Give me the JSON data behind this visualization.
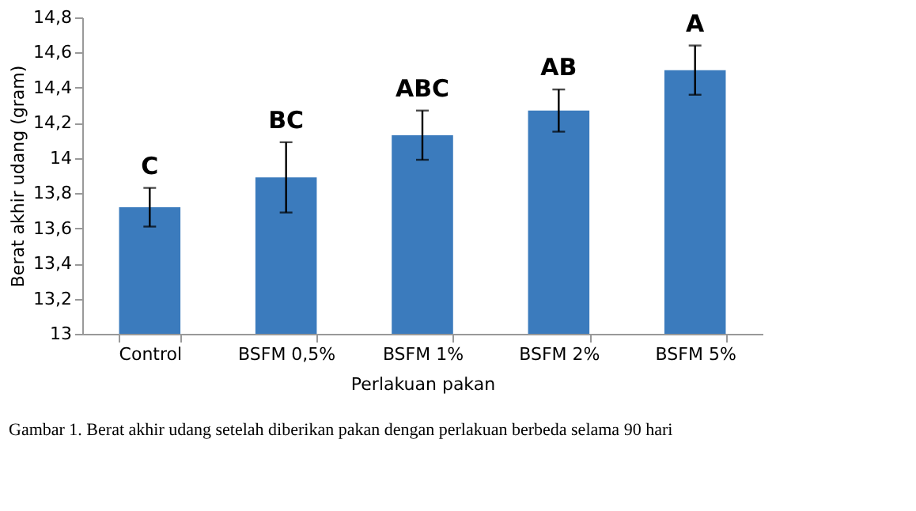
{
  "chart_data": {
    "type": "bar",
    "xlabel": "Perlakuan pakan",
    "ylabel": "Berat akhir udang (gram)",
    "categories": [
      "Control",
      "BSFM 0,5%",
      "BSFM 1%",
      "BSFM 2%",
      "BSFM 5%"
    ],
    "series": [
      {
        "color": "#3b7bbd",
        "values": [
          13.72,
          13.89,
          14.13,
          14.27,
          14.5
        ],
        "errors": [
          0.11,
          0.2,
          0.14,
          0.12,
          0.14
        ]
      }
    ],
    "ylim": [
      13,
      14.8
    ],
    "yticks": [
      {
        "value": 13,
        "label": "13"
      },
      {
        "value": 13.2,
        "label": "13,2"
      },
      {
        "value": 13.4,
        "label": "13,4"
      },
      {
        "value": 13.6,
        "label": "13,6"
      },
      {
        "value": 13.8,
        "label": "13,8"
      },
      {
        "value": 14,
        "label": "14"
      },
      {
        "value": 14.2,
        "label": "14,2"
      },
      {
        "value": 14.4,
        "label": "14,4"
      },
      {
        "value": 14.6,
        "label": "14,6"
      },
      {
        "value": 14.8,
        "label": "14,8"
      }
    ],
    "grid": false,
    "annotations": [
      {
        "text": "C",
        "x": "Control",
        "y": 13.83
      },
      {
        "text": "BC",
        "x": "BSFM 0,5%",
        "y": 14.09
      },
      {
        "text": "ABC",
        "x": "BSFM 1%",
        "y": 14.27
      },
      {
        "text": "AB",
        "x": "BSFM 2%",
        "y": 14.39
      },
      {
        "text": "A",
        "x": "BSFM 5%",
        "y": 14.64
      },
      "Gambar 1. Berat akhir udang setelah diberikan pakan dengan perlakuan berbeda selama 90 hari"
    ]
  }
}
